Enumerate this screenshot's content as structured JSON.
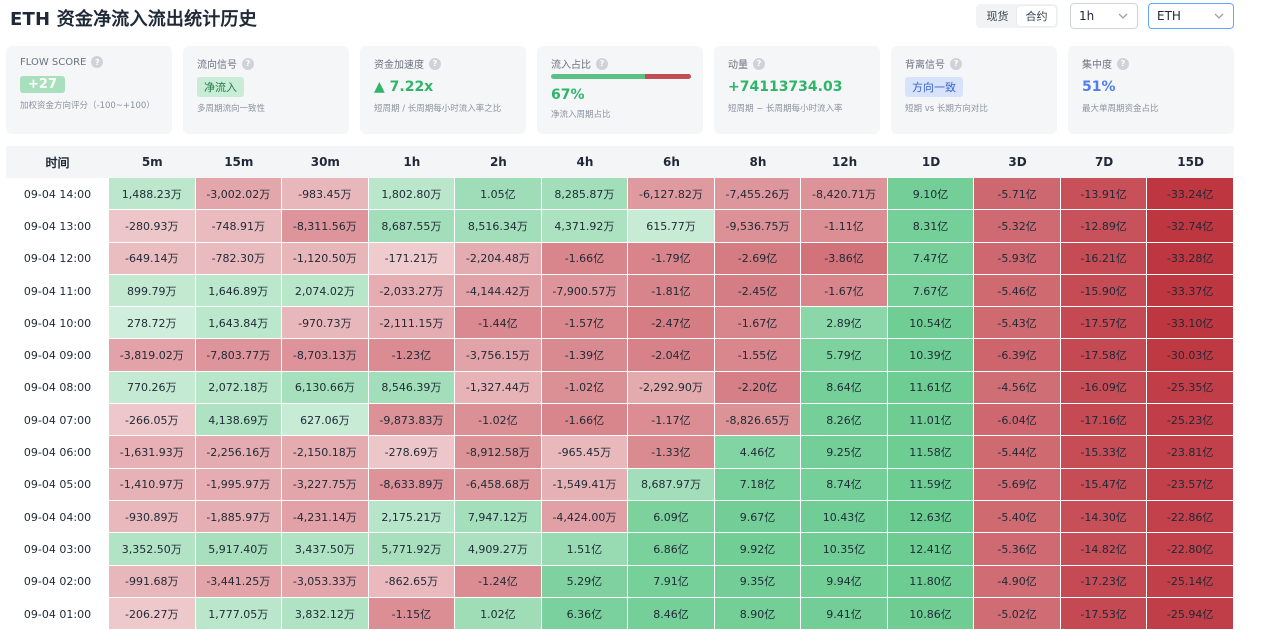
{
  "header": {
    "title": "ETH 资金净流入流出统计历史",
    "market_tabs": [
      {
        "label": "现货",
        "active": false
      },
      {
        "label": "合约",
        "active": true
      }
    ],
    "timeframe": "1h",
    "symbol": "ETH"
  },
  "cards": {
    "flow_score": {
      "label": "FLOW SCORE",
      "value": "+27",
      "sub": "加权资金方向评分（-100~+100）"
    },
    "flow_signal": {
      "label": "流向信号",
      "value": "净流入",
      "sub": "多周期流向一致性"
    },
    "accel": {
      "label": "资金加速度",
      "value": "▲ 7.22x",
      "sub": "短周期 / 长周期每小时流入率之比"
    },
    "inflow_ratio": {
      "label": "流入占比",
      "value": "67%",
      "ratio": 0.67,
      "sub": "净流入周期占比"
    },
    "momentum": {
      "label": "动量",
      "value": "+74113734.03",
      "sub": "短周期 − 长周期每小时流入率"
    },
    "bg_signal": {
      "label": "背离信号",
      "value": "方向一致",
      "sub": "短期 vs 长期方向对比"
    },
    "concentration": {
      "label": "集中度",
      "value": "51%",
      "sub": "最大单周期资金占比"
    }
  },
  "table": {
    "time_header": "时间",
    "columns": [
      "5m",
      "15m",
      "30m",
      "1h",
      "2h",
      "4h",
      "6h",
      "8h",
      "12h",
      "1D",
      "3D",
      "7D",
      "15D"
    ],
    "rows": [
      {
        "time": "09-04 14:00",
        "cells": [
          "1,488.23万",
          "-3,002.02万",
          "-983.45万",
          "1,802.80万",
          "1.05亿",
          "8,285.87万",
          "-6,127.82万",
          "-7,455.26万",
          "-8,420.71万",
          "9.10亿",
          "-5.71亿",
          "-13.91亿",
          "-33.24亿"
        ]
      },
      {
        "time": "09-04 13:00",
        "cells": [
          "-280.93万",
          "-748.91万",
          "-8,311.56万",
          "8,687.55万",
          "8,516.34万",
          "4,371.92万",
          "615.77万",
          "-9,536.75万",
          "-1.11亿",
          "8.31亿",
          "-5.32亿",
          "-12.89亿",
          "-32.74亿"
        ]
      },
      {
        "time": "09-04 12:00",
        "cells": [
          "-649.14万",
          "-782.30万",
          "-1,120.50万",
          "-171.21万",
          "-2,204.48万",
          "-1.66亿",
          "-1.79亿",
          "-2.69亿",
          "-3.86亿",
          "7.47亿",
          "-5.93亿",
          "-16.21亿",
          "-33.28亿"
        ]
      },
      {
        "time": "09-04 11:00",
        "cells": [
          "899.79万",
          "1,646.89万",
          "2,074.02万",
          "-2,033.27万",
          "-4,144.42万",
          "-7,900.57万",
          "-1.81亿",
          "-2.45亿",
          "-1.67亿",
          "7.67亿",
          "-5.46亿",
          "-15.90亿",
          "-33.37亿"
        ]
      },
      {
        "time": "09-04 10:00",
        "cells": [
          "278.72万",
          "1,643.84万",
          "-970.73万",
          "-2,111.15万",
          "-1.44亿",
          "-1.57亿",
          "-2.47亿",
          "-1.67亿",
          "2.89亿",
          "10.54亿",
          "-5.43亿",
          "-17.57亿",
          "-33.10亿"
        ]
      },
      {
        "time": "09-04 09:00",
        "cells": [
          "-3,819.02万",
          "-7,803.77万",
          "-8,703.13万",
          "-1.23亿",
          "-3,756.15万",
          "-1.39亿",
          "-2.04亿",
          "-1.55亿",
          "5.79亿",
          "10.39亿",
          "-6.39亿",
          "-17.58亿",
          "-30.03亿"
        ]
      },
      {
        "time": "09-04 08:00",
        "cells": [
          "770.26万",
          "2,072.18万",
          "6,130.66万",
          "8,546.39万",
          "-1,327.44万",
          "-1.02亿",
          "-2,292.90万",
          "-2.20亿",
          "8.64亿",
          "11.61亿",
          "-4.56亿",
          "-16.09亿",
          "-25.35亿"
        ]
      },
      {
        "time": "09-04 07:00",
        "cells": [
          "-266.05万",
          "4,138.69万",
          "627.06万",
          "-9,873.83万",
          "-1.02亿",
          "-1.66亿",
          "-1.17亿",
          "-8,826.65万",
          "8.26亿",
          "11.01亿",
          "-6.04亿",
          "-17.16亿",
          "-25.23亿"
        ]
      },
      {
        "time": "09-04 06:00",
        "cells": [
          "-1,631.93万",
          "-2,256.16万",
          "-2,150.18万",
          "-278.69万",
          "-8,912.58万",
          "-965.45万",
          "-1.33亿",
          "4.46亿",
          "9.25亿",
          "11.58亿",
          "-5.44亿",
          "-15.33亿",
          "-23.81亿"
        ]
      },
      {
        "time": "09-04 05:00",
        "cells": [
          "-1,410.97万",
          "-1,995.97万",
          "-3,227.75万",
          "-8,633.89万",
          "-6,458.68万",
          "-1,549.41万",
          "8,687.97万",
          "7.18亿",
          "8.74亿",
          "11.59亿",
          "-5.69亿",
          "-15.47亿",
          "-23.57亿"
        ]
      },
      {
        "time": "09-04 04:00",
        "cells": [
          "-930.89万",
          "-1,885.97万",
          "-4,231.14万",
          "2,175.21万",
          "7,947.12万",
          "-4,424.00万",
          "6.09亿",
          "9.67亿",
          "10.43亿",
          "12.63亿",
          "-5.40亿",
          "-14.30亿",
          "-22.86亿"
        ]
      },
      {
        "time": "09-04 03:00",
        "cells": [
          "3,352.50万",
          "5,917.40万",
          "3,437.50万",
          "5,771.92万",
          "4,909.27万",
          "1.51亿",
          "6.86亿",
          "9.92亿",
          "10.35亿",
          "12.41亿",
          "-5.36亿",
          "-14.82亿",
          "-22.80亿"
        ]
      },
      {
        "time": "09-04 02:00",
        "cells": [
          "-991.68万",
          "-3,441.25万",
          "-3,053.33万",
          "-862.65万",
          "-1.24亿",
          "5.29亿",
          "7.91亿",
          "9.35亿",
          "9.94亿",
          "11.80亿",
          "-4.90亿",
          "-17.23亿",
          "-25.14亿"
        ]
      },
      {
        "time": "09-04 01:00",
        "cells": [
          "-206.27万",
          "1,777.05万",
          "3,832.12万",
          "-1.15亿",
          "1.02亿",
          "6.36亿",
          "8.46亿",
          "8.90亿",
          "9.41亿",
          "10.86亿",
          "-5.02亿",
          "-17.53亿",
          "-25.94亿"
        ]
      }
    ]
  }
}
